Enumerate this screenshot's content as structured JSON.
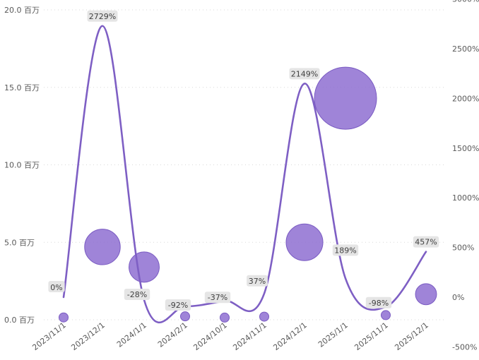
{
  "chart_data": {
    "type": "bubble-line-combo",
    "categories": [
      "2023/11/1",
      "2023/12/1",
      "2024/1/1",
      "2024/2/1",
      "2024/10/1",
      "2024/11/1",
      "2024/12/1",
      "2025/1/1",
      "2025/11/1",
      "2025/12/1"
    ],
    "bubble_series": {
      "values": [
        0.15,
        4.7,
        3.4,
        0.22,
        0.14,
        0.2,
        5.0,
        14.3,
        0.3,
        1.65
      ],
      "color": "#8e6fd1"
    },
    "line_series": {
      "values": [
        0,
        2729,
        -28,
        -92,
        -37,
        37,
        2149,
        189,
        -98,
        457
      ],
      "labels": [
        "0%",
        "2729%",
        "-28%",
        "-92%",
        "-37%",
        "37%",
        "2149%",
        "189%",
        "-98%",
        "457%"
      ],
      "color": "#7e5fc4"
    },
    "y_left": {
      "min": 0,
      "max": 20,
      "ticks": [
        "0.0 百万",
        "5.0 百万",
        "10.0 百万",
        "15.0 百万",
        "20.0 百万"
      ]
    },
    "y_right": {
      "min": -500,
      "max": 3000,
      "ticks": [
        "-500%",
        "0%",
        "500%",
        "1000%",
        "1500%",
        "2000%",
        "2500%",
        "3000%"
      ]
    },
    "grid": true,
    "legend": "none"
  }
}
